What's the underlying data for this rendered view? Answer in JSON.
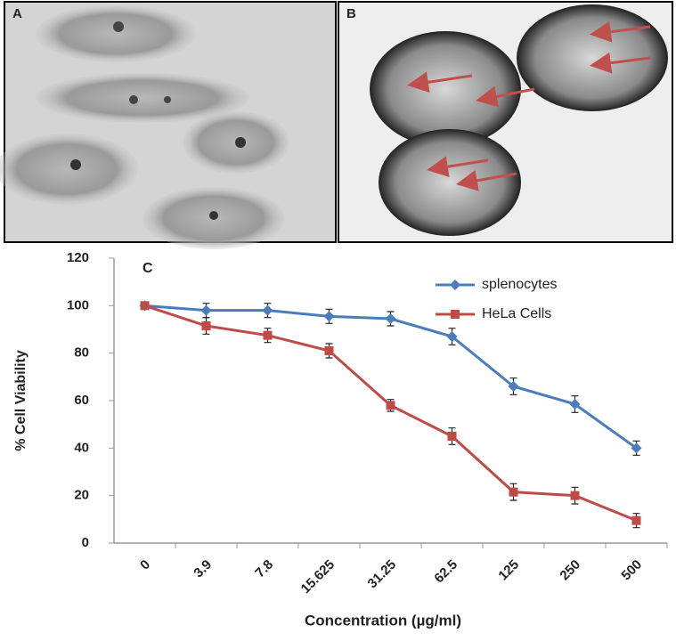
{
  "panel_labels": [
    "A",
    "B"
  ],
  "chart_data": {
    "type": "line",
    "title": "C",
    "x_label": "Concentration (µg/ml)",
    "y_label": "% Cell Viability",
    "categories": [
      "0",
      "3.9",
      "7.8",
      "15.625",
      "31.25",
      "62.5",
      "125",
      "250",
      "500"
    ],
    "series": [
      {
        "name": "splenocytes",
        "color": "#4a7ebb",
        "marker": "diamond",
        "values": [
          100,
          98,
          98,
          95.5,
          94.5,
          87,
          66,
          58.5,
          40
        ],
        "errors": [
          1,
          3,
          3,
          3,
          3,
          3.5,
          3.5,
          3.5,
          3
        ]
      },
      {
        "name": "HeLa Cells",
        "color": "#be4b48",
        "marker": "square",
        "values": [
          100,
          91.5,
          87.5,
          81,
          58,
          45,
          21.5,
          20,
          9.5
        ],
        "errors": [
          1,
          3.5,
          3,
          3,
          2.5,
          3.5,
          3.5,
          3.5,
          3
        ]
      }
    ],
    "ylim": [
      0,
      120
    ],
    "yticks": [
      0,
      20,
      40,
      60,
      80,
      100,
      120
    ],
    "grid": false,
    "legend": "upper right"
  }
}
